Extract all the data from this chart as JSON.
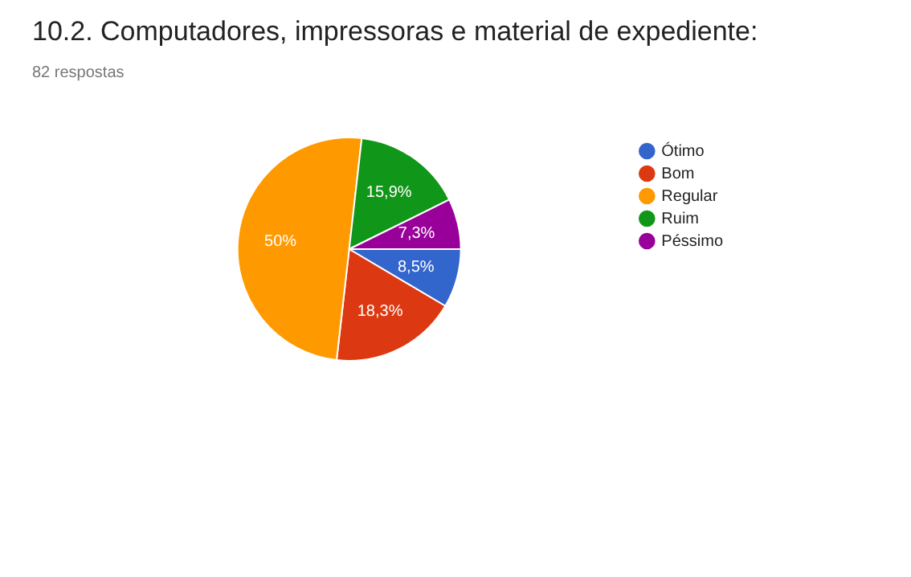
{
  "chart_data": {
    "type": "pie",
    "title": "10.2. Computadores, impressoras e material de expediente:",
    "subtitle": "82 respostas",
    "categories": [
      "Ótimo",
      "Bom",
      "Regular",
      "Ruim",
      "Péssimo"
    ],
    "values": [
      8.5,
      18.3,
      50,
      15.9,
      7.3
    ],
    "colors": [
      "#3366cc",
      "#dc3912",
      "#ff9900",
      "#109618",
      "#990099"
    ],
    "value_labels": [
      "8,5%",
      "18,3%",
      "50%",
      "15,9%",
      "7,3%"
    ],
    "legend": "right"
  }
}
